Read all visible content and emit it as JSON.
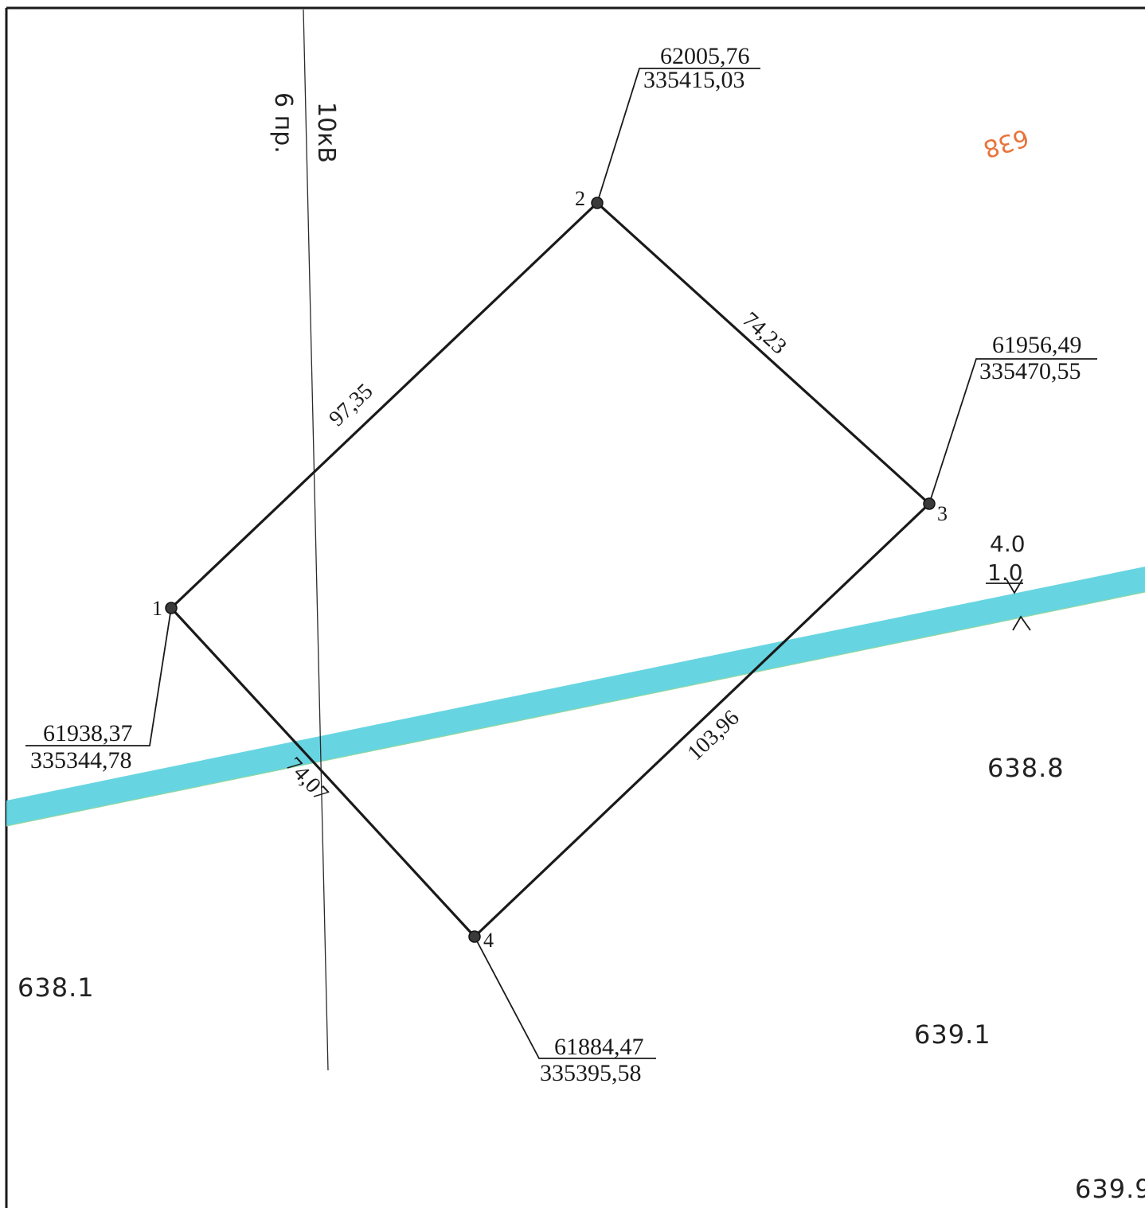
{
  "diagram": {
    "colors": {
      "boundary": "#1a1a1a",
      "river": "#5fd3df",
      "contour_label": "#e8743c"
    },
    "power_line": {
      "voltage_label": "10кВ",
      "wires_label": "6 пр."
    },
    "points": [
      {
        "id": "1",
        "label": "1",
        "x": "61938,37",
        "y": "335344,78"
      },
      {
        "id": "2",
        "label": "2",
        "x": "62005,76",
        "y": "335415,03"
      },
      {
        "id": "3",
        "label": "3",
        "x": "61956,49",
        "y": "335470,55"
      },
      {
        "id": "4",
        "label": "4",
        "x": "61884,47",
        "y": "335395,58"
      }
    ],
    "edges": [
      {
        "from": "1",
        "to": "2",
        "length": "97,35"
      },
      {
        "from": "2",
        "to": "3",
        "length": "74,23"
      },
      {
        "from": "3",
        "to": "4",
        "length": "103,96"
      },
      {
        "from": "4",
        "to": "1",
        "length": "74,07"
      }
    ],
    "stream": {
      "width_top": "4.0",
      "width_bottom": "1.0"
    },
    "contour_label": "638",
    "elevations": [
      "638.8",
      "638.1",
      "639.1",
      "639.9"
    ]
  }
}
